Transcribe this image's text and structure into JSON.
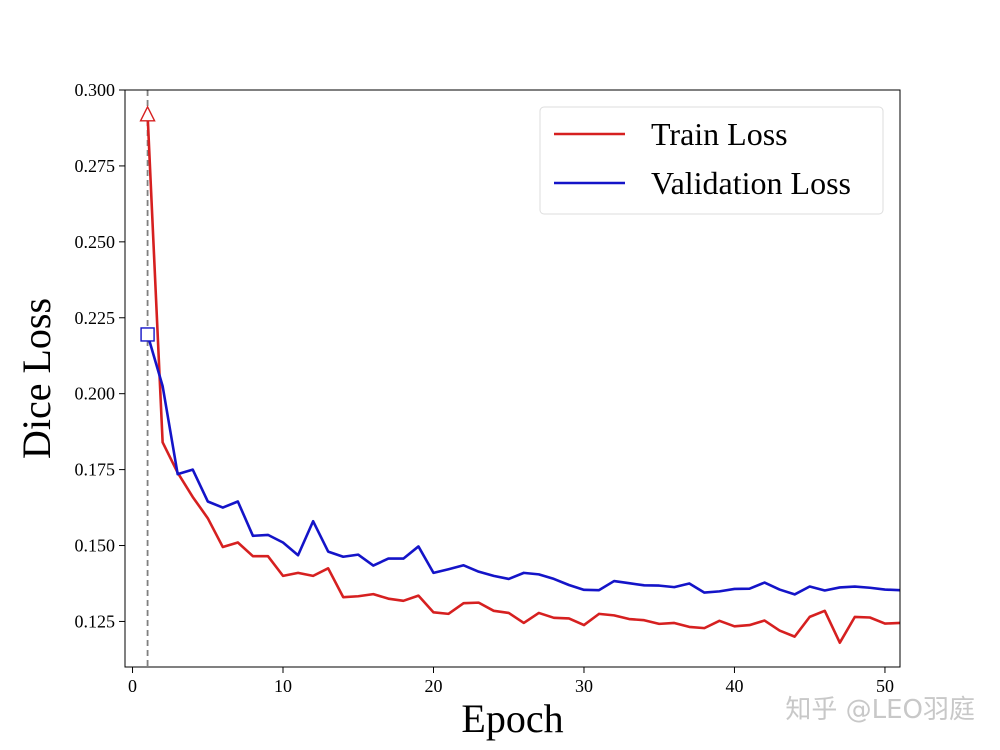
{
  "chart_data": {
    "type": "line",
    "title": "",
    "xlabel": "Epoch",
    "ylabel": "Dice Loss",
    "xlim": [
      -0.5,
      51
    ],
    "ylim": [
      0.11,
      0.3
    ],
    "x_ticks": [
      "0",
      "10",
      "20",
      "30",
      "40",
      "50"
    ],
    "y_ticks": [
      "0.125",
      "0.150",
      "0.175",
      "0.200",
      "0.225",
      "0.250",
      "0.275",
      "0.300"
    ],
    "grid": false,
    "legend_position": "top-right",
    "vertical_marker_x": 1,
    "series": [
      {
        "name": "Train Loss",
        "color": "#d62020",
        "marker": {
          "x": 1,
          "y": 0.292,
          "shape": "triangle"
        },
        "x": [
          1,
          2,
          3,
          4,
          5,
          6,
          7,
          8,
          9,
          10,
          11,
          12,
          13,
          14,
          15,
          16,
          17,
          18,
          19,
          20,
          21,
          22,
          23,
          24,
          25,
          26,
          27,
          28,
          29,
          30,
          31,
          32,
          33,
          34,
          35,
          36,
          37,
          38,
          39,
          40,
          41,
          42,
          43,
          44,
          45,
          46,
          47,
          48,
          49,
          50,
          51
        ],
        "values": [
          0.292,
          0.184,
          0.174,
          0.166,
          0.159,
          0.1495,
          0.151,
          0.1465,
          0.1465,
          0.14,
          0.141,
          0.14,
          0.1425,
          0.133,
          0.1333,
          0.134,
          0.1325,
          0.1318,
          0.1335,
          0.128,
          0.1275,
          0.131,
          0.1312,
          0.1285,
          0.1278,
          0.1245,
          0.1278,
          0.1262,
          0.126,
          0.1238,
          0.1275,
          0.127,
          0.1258,
          0.1254,
          0.1242,
          0.1245,
          0.1232,
          0.1228,
          0.1252,
          0.1234,
          0.1238,
          0.1253,
          0.122,
          0.12,
          0.1265,
          0.1285,
          0.118,
          0.1265,
          0.1263,
          0.1243,
          0.1245
        ]
      },
      {
        "name": "Validation Loss",
        "color": "#1414c8",
        "marker": {
          "x": 1,
          "y": 0.2195,
          "shape": "square"
        },
        "x": [
          1,
          2,
          3,
          4,
          5,
          6,
          7,
          8,
          9,
          10,
          11,
          12,
          13,
          14,
          15,
          16,
          17,
          18,
          19,
          20,
          21,
          22,
          23,
          24,
          25,
          26,
          27,
          28,
          29,
          30,
          31,
          32,
          33,
          34,
          35,
          36,
          37,
          38,
          39,
          40,
          41,
          42,
          43,
          44,
          45,
          46,
          47,
          48,
          49,
          50,
          51
        ],
        "values": [
          0.2195,
          0.2025,
          0.1735,
          0.175,
          0.1645,
          0.1625,
          0.1645,
          0.1532,
          0.1535,
          0.151,
          0.1468,
          0.158,
          0.148,
          0.1463,
          0.147,
          0.1434,
          0.1457,
          0.1457,
          0.1497,
          0.141,
          0.1422,
          0.1435,
          0.1414,
          0.14,
          0.139,
          0.141,
          0.1405,
          0.139,
          0.137,
          0.1354,
          0.1353,
          0.1383,
          0.1376,
          0.1369,
          0.1368,
          0.1363,
          0.1375,
          0.1345,
          0.1349,
          0.1357,
          0.1358,
          0.1378,
          0.1355,
          0.1339,
          0.1365,
          0.1352,
          0.1362,
          0.1365,
          0.1361,
          0.1355,
          0.1353
        ]
      }
    ]
  },
  "watermark": "知乎 @LEO羽庭"
}
